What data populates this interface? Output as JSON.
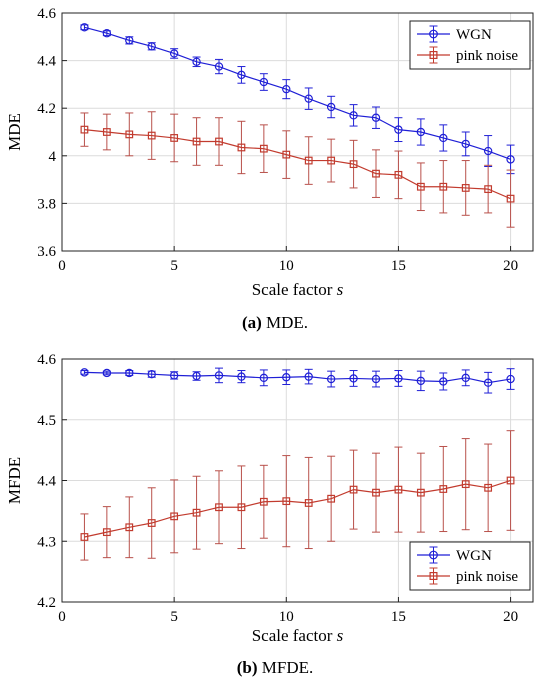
{
  "colors": {
    "wgn": "#1f1fd6",
    "pink": "#c23b2e",
    "pink_bar": "#b8504a",
    "grid": "#dcdcdc",
    "axis": "#222222"
  },
  "chart_data": [
    {
      "type": "line",
      "caption_label": "(a)",
      "caption_text": " MDE.",
      "xlabel": "Scale factor ",
      "xlabel_italic": "s",
      "ylabel": "MDE",
      "xlim": [
        0,
        21
      ],
      "ylim": [
        3.6,
        4.6
      ],
      "xticks": [
        0,
        5,
        10,
        15,
        20
      ],
      "yticks": [
        3.6,
        3.8,
        4,
        4.2,
        4.4,
        4.6
      ],
      "ytick_labels": [
        "3.6",
        "3.8",
        "4",
        "4.2",
        "4.4",
        "4.6"
      ],
      "grid": true,
      "legend_position": "top-right",
      "x": [
        1,
        2,
        3,
        4,
        5,
        6,
        7,
        8,
        9,
        10,
        11,
        12,
        13,
        14,
        15,
        16,
        17,
        18,
        19,
        20
      ],
      "series": [
        {
          "name": "WGN",
          "marker": "circle",
          "values": [
            4.54,
            4.515,
            4.485,
            4.46,
            4.43,
            4.395,
            4.375,
            4.34,
            4.31,
            4.28,
            4.24,
            4.205,
            4.17,
            4.16,
            4.11,
            4.1,
            4.075,
            4.05,
            4.02,
            3.985
          ],
          "errors": [
            0.01,
            0.01,
            0.015,
            0.015,
            0.02,
            0.02,
            0.03,
            0.035,
            0.035,
            0.04,
            0.045,
            0.045,
            0.045,
            0.045,
            0.05,
            0.055,
            0.055,
            0.05,
            0.065,
            0.06
          ]
        },
        {
          "name": "pink noise",
          "marker": "square",
          "values": [
            4.11,
            4.1,
            4.09,
            4.085,
            4.075,
            4.06,
            4.06,
            4.035,
            4.03,
            4.005,
            3.98,
            3.98,
            3.965,
            3.925,
            3.92,
            3.87,
            3.87,
            3.865,
            3.86,
            3.82
          ],
          "errors": [
            0.07,
            0.075,
            0.09,
            0.1,
            0.1,
            0.1,
            0.1,
            0.11,
            0.1,
            0.1,
            0.1,
            0.09,
            0.1,
            0.1,
            0.1,
            0.1,
            0.11,
            0.115,
            0.1,
            0.12
          ]
        }
      ]
    },
    {
      "type": "line",
      "caption_label": "(b)",
      "caption_text": " MFDE.",
      "xlabel": "Scale factor ",
      "xlabel_italic": "s",
      "ylabel": "MFDE",
      "xlim": [
        0,
        21
      ],
      "ylim": [
        4.2,
        4.6
      ],
      "xticks": [
        0,
        5,
        10,
        15,
        20
      ],
      "yticks": [
        4.2,
        4.3,
        4.4,
        4.5,
        4.6
      ],
      "ytick_labels": [
        "4.2",
        "4.3",
        "4.4",
        "4.5",
        "4.6"
      ],
      "grid": true,
      "legend_position": "bottom-right",
      "x": [
        1,
        2,
        3,
        4,
        5,
        6,
        7,
        8,
        9,
        10,
        11,
        12,
        13,
        14,
        15,
        16,
        17,
        18,
        19,
        20
      ],
      "series": [
        {
          "name": "WGN",
          "marker": "circle",
          "values": [
            4.578,
            4.577,
            4.577,
            4.575,
            4.573,
            4.572,
            4.573,
            4.571,
            4.569,
            4.57,
            4.571,
            4.567,
            4.568,
            4.567,
            4.568,
            4.564,
            4.563,
            4.569,
            4.561,
            4.567
          ],
          "errors": [
            0.003,
            0.003,
            0.004,
            0.005,
            0.006,
            0.007,
            0.012,
            0.01,
            0.013,
            0.012,
            0.012,
            0.013,
            0.013,
            0.013,
            0.013,
            0.016,
            0.014,
            0.013,
            0.017,
            0.017
          ]
        },
        {
          "name": "pink noise",
          "marker": "square",
          "values": [
            4.307,
            4.315,
            4.323,
            4.33,
            4.341,
            4.347,
            4.356,
            4.356,
            4.365,
            4.366,
            4.363,
            4.37,
            4.385,
            4.38,
            4.385,
            4.38,
            4.386,
            4.394,
            4.388,
            4.4
          ],
          "errors": [
            0.038,
            0.042,
            0.05,
            0.058,
            0.06,
            0.06,
            0.06,
            0.068,
            0.06,
            0.075,
            0.075,
            0.07,
            0.065,
            0.065,
            0.07,
            0.065,
            0.07,
            0.075,
            0.072,
            0.082
          ]
        }
      ]
    }
  ]
}
